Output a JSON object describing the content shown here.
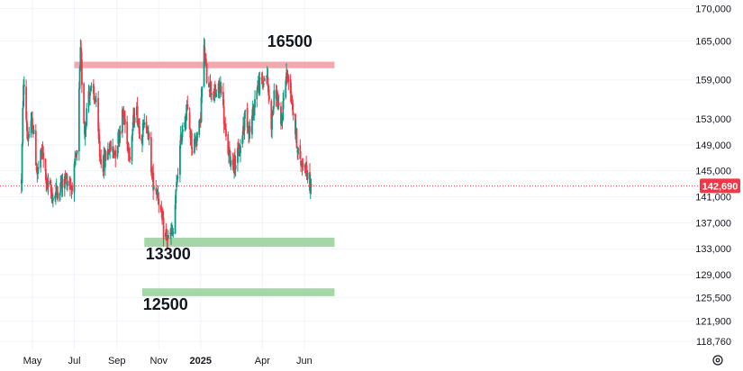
{
  "chart_data": {
    "type": "candlestick",
    "ylim": [
      117500,
      171300
    ],
    "yticks": [
      "170,000",
      "165,000",
      "159,000",
      "153,000",
      "149,000",
      "145,000",
      "141,000",
      "137,000",
      "133,000",
      "129,000",
      "125,500",
      "121,900",
      "118,760"
    ],
    "ytick_values": [
      170000,
      165000,
      159000,
      153000,
      149000,
      145000,
      141000,
      137000,
      133000,
      129000,
      125500,
      121900,
      118760
    ],
    "xticks": [
      {
        "label": "May",
        "date": "2024-05-01",
        "bold": false
      },
      {
        "label": "Jul",
        "date": "2024-07-01",
        "bold": false
      },
      {
        "label": "Sep",
        "date": "2024-09-01",
        "bold": false
      },
      {
        "label": "Nov",
        "date": "2024-11-01",
        "bold": false
      },
      {
        "label": "2025",
        "date": "2025-01-01",
        "bold": true
      },
      {
        "label": "Apr",
        "date": "2025-04-01",
        "bold": false
      },
      {
        "label": "Jun",
        "date": "2025-06-01",
        "bold": false
      }
    ],
    "current_price": {
      "label": "142,690",
      "value": 142690,
      "color": "#f23645"
    },
    "zones": [
      {
        "price_top": 161800,
        "price_bottom": 160800,
        "color": "#f4a7ad",
        "from": "2024-07-01",
        "to": "2025-07-15"
      },
      {
        "price_top": 134700,
        "price_bottom": 133300,
        "color": "#a5d6a7",
        "from": "2024-10-11",
        "to": "2025-07-15"
      },
      {
        "price_top": 126900,
        "price_bottom": 125700,
        "color": "#a5d6a7",
        "from": "2024-10-08",
        "to": "2025-07-15"
      }
    ],
    "annotations": [
      {
        "text": "16500",
        "date": "2025-04-08",
        "price": 164100
      },
      {
        "text": "13300",
        "date": "2024-10-13",
        "price": 131400
      },
      {
        "text": "12500",
        "date": "2024-10-09",
        "price": 123600
      }
    ],
    "colors": {
      "up": "#089981",
      "down": "#f23645",
      "grid": "#f0f3fa",
      "text": "#131722"
    },
    "keypoints": [
      [
        "2024-04-15",
        143500
      ],
      [
        "2024-04-18",
        159000
      ],
      [
        "2024-04-24",
        150000
      ],
      [
        "2024-05-01",
        152500
      ],
      [
        "2024-05-08",
        144500
      ],
      [
        "2024-05-15",
        148000
      ],
      [
        "2024-05-22",
        143000
      ],
      [
        "2024-05-31",
        141000
      ],
      [
        "2024-06-10",
        142500
      ],
      [
        "2024-06-20",
        144000
      ],
      [
        "2024-06-27",
        142500
      ],
      [
        "2024-07-05",
        147500
      ],
      [
        "2024-07-10",
        163000
      ],
      [
        "2024-07-16",
        151000
      ],
      [
        "2024-07-22",
        157500
      ],
      [
        "2024-08-01",
        156000
      ],
      [
        "2024-08-07",
        147500
      ],
      [
        "2024-08-12",
        146000
      ],
      [
        "2024-08-20",
        148500
      ],
      [
        "2024-08-30",
        148000
      ],
      [
        "2024-09-10",
        154000
      ],
      [
        "2024-09-20",
        147500
      ],
      [
        "2024-09-28",
        155500
      ],
      [
        "2024-10-05",
        150500
      ],
      [
        "2024-10-15",
        152500
      ],
      [
        "2024-10-23",
        143500
      ],
      [
        "2024-10-31",
        141500
      ],
      [
        "2024-11-08",
        135500
      ],
      [
        "2024-11-15",
        134500
      ],
      [
        "2024-11-22",
        135500
      ],
      [
        "2024-11-28",
        144000
      ],
      [
        "2024-12-05",
        151500
      ],
      [
        "2024-12-12",
        154500
      ],
      [
        "2024-12-20",
        148500
      ],
      [
        "2024-12-31",
        152000
      ],
      [
        "2025-01-06",
        163500
      ],
      [
        "2025-01-10",
        159500
      ],
      [
        "2025-01-20",
        156500
      ],
      [
        "2025-01-31",
        158000
      ],
      [
        "2025-02-07",
        149500
      ],
      [
        "2025-02-14",
        146500
      ],
      [
        "2025-02-21",
        146500
      ],
      [
        "2025-02-28",
        148500
      ],
      [
        "2025-03-07",
        154000
      ],
      [
        "2025-03-14",
        151000
      ],
      [
        "2025-03-24",
        158000
      ],
      [
        "2025-04-01",
        158500
      ],
      [
        "2025-04-07",
        160000
      ],
      [
        "2025-04-14",
        152500
      ],
      [
        "2025-04-20",
        158000
      ],
      [
        "2025-04-28",
        151500
      ],
      [
        "2025-05-05",
        160000
      ],
      [
        "2025-05-12",
        158000
      ],
      [
        "2025-05-19",
        151000
      ],
      [
        "2025-05-26",
        146000
      ],
      [
        "2025-06-02",
        146500
      ],
      [
        "2025-06-06",
        143500
      ],
      [
        "2025-06-11",
        142700
      ]
    ]
  }
}
